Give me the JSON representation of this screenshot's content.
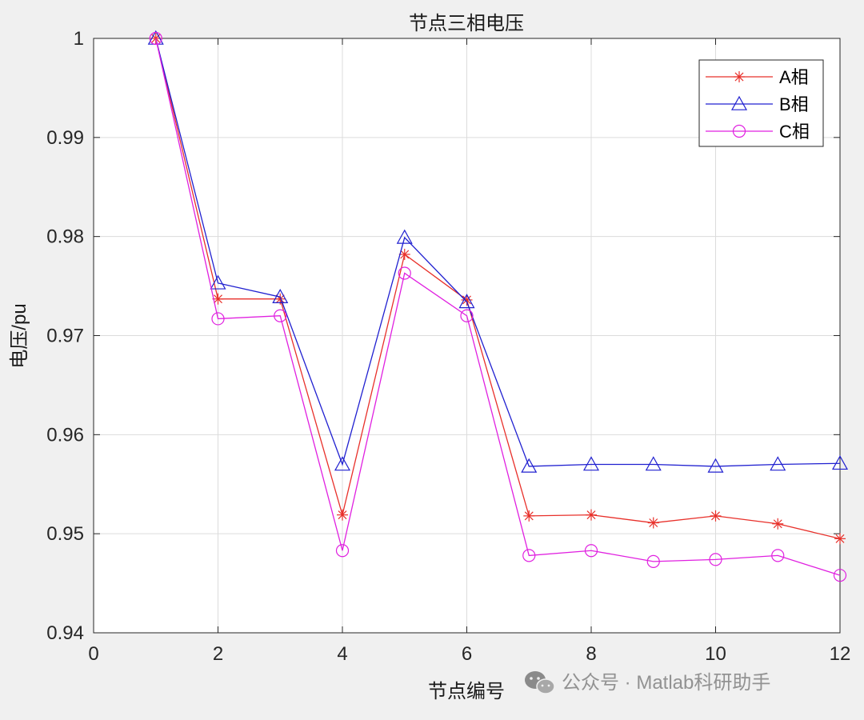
{
  "chart_data": {
    "type": "line",
    "title": "节点三相电压",
    "xlabel": "节点编号",
    "ylabel": "电压/pu",
    "xlim": [
      0,
      12
    ],
    "ylim": [
      0.94,
      1.0
    ],
    "grid": true,
    "legend_position": "top-right",
    "x": [
      1,
      2,
      3,
      4,
      5,
      6,
      7,
      8,
      9,
      10,
      11,
      12
    ],
    "x_ticks": [
      "0",
      "2",
      "4",
      "6",
      "8",
      "10",
      "12"
    ],
    "y_ticks": [
      "0.94",
      "0.95",
      "0.96",
      "0.97",
      "0.98",
      "0.99",
      "1"
    ],
    "series": [
      {
        "name": "A相",
        "color": "#e8302a",
        "marker": "asterisk",
        "values": [
          1.0,
          0.9737,
          0.9737,
          0.9519,
          0.9782,
          0.9736,
          0.9518,
          0.9519,
          0.9511,
          0.9518,
          0.951,
          0.9495
        ]
      },
      {
        "name": "B相",
        "color": "#2020d0",
        "marker": "triangle",
        "values": [
          1.0,
          0.9753,
          0.9739,
          0.957,
          0.9799,
          0.9734,
          0.9568,
          0.957,
          0.957,
          0.9568,
          0.957,
          0.9571
        ]
      },
      {
        "name": "C相",
        "color": "#e020e0",
        "marker": "circle",
        "values": [
          1.0,
          0.9717,
          0.972,
          0.9483,
          0.9763,
          0.972,
          0.9478,
          0.9483,
          0.9472,
          0.9474,
          0.9478,
          0.9458
        ]
      }
    ]
  },
  "watermark": {
    "text": "公众号 · Matlab科研助手",
    "icon": "wechat-icon"
  }
}
